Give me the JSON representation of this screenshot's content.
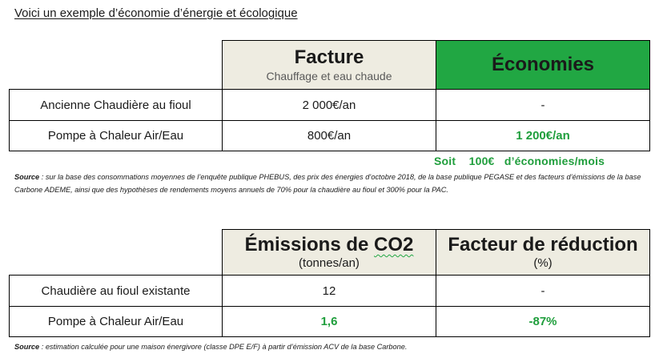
{
  "title": "Voici un exemple  d’économie d’énergie et écologique",
  "table1": {
    "col1_header": "Facture",
    "col1_subheader": "Chauffage et eau chaude",
    "col2_header": "Économies",
    "rows": [
      {
        "label": "Ancienne Chaudière au fioul",
        "value": "2 000€/an",
        "saving": "-"
      },
      {
        "label": "Pompe à Chaleur Air/Eau",
        "value": "800€/an",
        "saving": "1 200€/an"
      }
    ]
  },
  "monthly_savings": "Soit    100€   d’économies/mois",
  "source1": {
    "label": "Source",
    "text": " : sur la base des consommations moyennes de l’enquête publique PHEBUS, des prix des énergies d’octobre 2018, de la base publique PEGASE et des facteurs d’émissions de la base Carbone ADEME, ainsi que des hypothèses de rendements moyens annuels de 70% pour la chaudière au fioul et 300% pour la PAC."
  },
  "table2": {
    "col1_header": "Émissions de CO2",
    "col1_subheader": "(tonnes/an)",
    "col2_header": "Facteur de réduction",
    "col2_subheader": "(%)",
    "rows": [
      {
        "label": "Chaudière au fioul existante",
        "value": "12",
        "reduction": "-"
      },
      {
        "label": "Pompe à Chaleur Air/Eau",
        "value": "1,6",
        "reduction": "-87%"
      }
    ]
  },
  "source2": {
    "label": "Source",
    "text": " : estimation calculée pour une maison énergivore (classe DPE E/F) à partir d’émission ACV de la base Carbone."
  },
  "colors": {
    "header_beige": "#eeece1",
    "header_green": "#21a743",
    "text_green": "#1f9e3c"
  }
}
